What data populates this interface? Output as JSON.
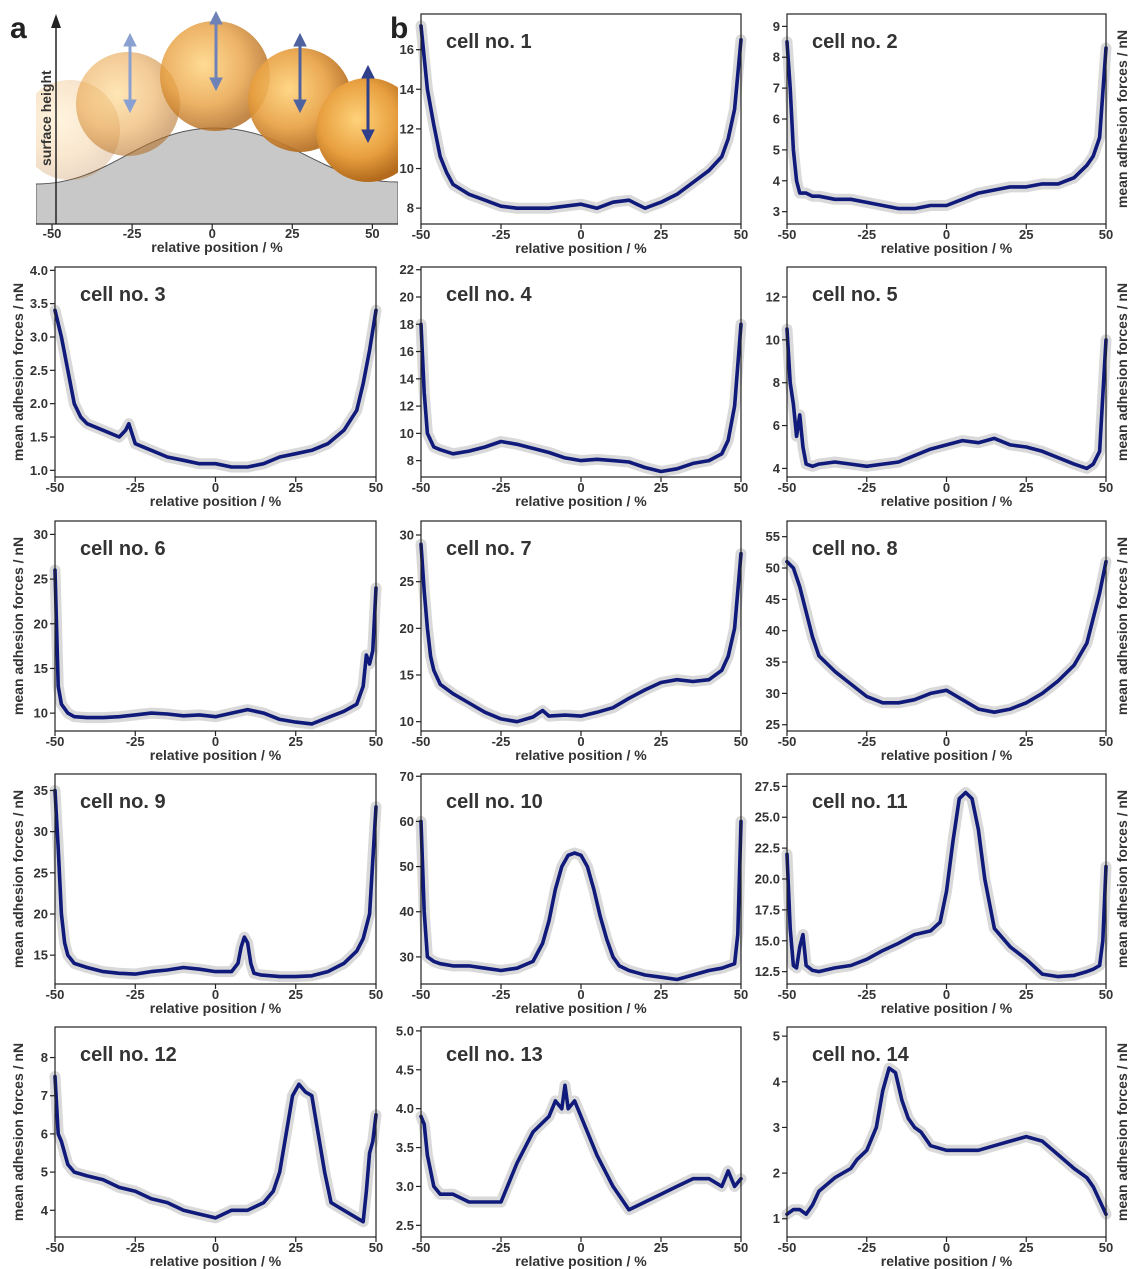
{
  "figure": {
    "panel_a_letter": "a",
    "panel_b_letter": "b",
    "panel_a": {
      "ylabel": "surface height",
      "xlabel": "relative position / %",
      "x_ticks": [
        "-50",
        "-25",
        "0",
        "25",
        "50"
      ],
      "xlim": [
        -55,
        58
      ]
    },
    "colors": {
      "line": "#0f1a7a",
      "band": "#d9d9d9",
      "surface": "#c8c8c8",
      "cell_core": "#e8a040",
      "cell_light": "#ffd27a",
      "arrow": "#5a6ea6"
    }
  },
  "chart_data": [
    {
      "type": "line",
      "title": "cell no. 1",
      "xlabel": "relative position / %",
      "ylabel": "",
      "xlim": [
        -50,
        50
      ],
      "ylim": [
        7.2,
        17.8
      ],
      "yticks": [
        "8",
        "10",
        "12",
        "14",
        "16"
      ],
      "x": [
        -50,
        -48,
        -46,
        -44,
        -42,
        -40,
        -35,
        -30,
        -25,
        -20,
        -15,
        -10,
        -5,
        0,
        5,
        10,
        15,
        20,
        25,
        30,
        35,
        40,
        44,
        46,
        48,
        50
      ],
      "values": [
        17.2,
        14.0,
        12.2,
        10.6,
        9.8,
        9.2,
        8.7,
        8.4,
        8.1,
        8.0,
        8.0,
        8.0,
        8.1,
        8.2,
        8.0,
        8.3,
        8.4,
        8.0,
        8.3,
        8.7,
        9.3,
        9.9,
        10.6,
        11.5,
        13.0,
        16.5
      ]
    },
    {
      "type": "line",
      "title": "cell no. 2",
      "xlabel": "relative position / %",
      "ylabel": "mean adhesion forces / nN",
      "xlim": [
        -50,
        50
      ],
      "ylim": [
        2.6,
        9.4
      ],
      "yticks": [
        "3",
        "4",
        "5",
        "6",
        "7",
        "8",
        "9"
      ],
      "x": [
        -50,
        -49,
        -48,
        -47,
        -46,
        -44,
        -42,
        -40,
        -35,
        -30,
        -25,
        -20,
        -15,
        -10,
        -5,
        0,
        5,
        10,
        15,
        20,
        25,
        30,
        35,
        40,
        44,
        46,
        48,
        50
      ],
      "values": [
        8.5,
        7.0,
        5.0,
        4.0,
        3.6,
        3.6,
        3.5,
        3.5,
        3.4,
        3.4,
        3.3,
        3.2,
        3.1,
        3.1,
        3.2,
        3.2,
        3.4,
        3.6,
        3.7,
        3.8,
        3.8,
        3.9,
        3.9,
        4.1,
        4.5,
        4.8,
        5.4,
        8.3
      ]
    },
    {
      "type": "line",
      "title": "cell no. 3",
      "xlabel": "relative position / %",
      "ylabel": "mean adhesion forces / nN",
      "xlim": [
        -50,
        50
      ],
      "ylim": [
        0.9,
        4.05
      ],
      "yticks": [
        "1.0",
        "1.5",
        "2.0",
        "2.5",
        "3.0",
        "3.5",
        "4.0"
      ],
      "x": [
        -50,
        -48,
        -46,
        -44,
        -42,
        -40,
        -35,
        -30,
        -28,
        -27,
        -25,
        -20,
        -15,
        -10,
        -5,
        0,
        5,
        10,
        15,
        20,
        25,
        30,
        35,
        40,
        44,
        46,
        48,
        50
      ],
      "values": [
        3.4,
        3.0,
        2.5,
        2.0,
        1.8,
        1.7,
        1.6,
        1.5,
        1.6,
        1.7,
        1.4,
        1.3,
        1.2,
        1.15,
        1.1,
        1.1,
        1.05,
        1.05,
        1.1,
        1.2,
        1.25,
        1.3,
        1.4,
        1.6,
        1.9,
        2.3,
        2.8,
        3.4
      ]
    },
    {
      "type": "line",
      "title": "cell no. 4",
      "xlabel": "relative position / %",
      "ylabel": "",
      "xlim": [
        -50,
        50
      ],
      "ylim": [
        6.8,
        22.2
      ],
      "yticks": [
        "8",
        "10",
        "12",
        "14",
        "16",
        "18",
        "20",
        "22"
      ],
      "x": [
        -50,
        -49,
        -48,
        -47,
        -46,
        -44,
        -40,
        -35,
        -30,
        -25,
        -20,
        -15,
        -10,
        -5,
        0,
        5,
        10,
        15,
        20,
        25,
        30,
        35,
        40,
        44,
        46,
        48,
        50
      ],
      "values": [
        18.0,
        13.0,
        10.0,
        9.5,
        9.0,
        8.8,
        8.5,
        8.7,
        9.0,
        9.4,
        9.2,
        8.9,
        8.6,
        8.2,
        8.0,
        8.1,
        8.0,
        7.9,
        7.5,
        7.2,
        7.4,
        7.8,
        8.0,
        8.5,
        9.5,
        12.0,
        18.0
      ]
    },
    {
      "type": "line",
      "title": "cell no. 5",
      "xlabel": "relative position / %",
      "ylabel": "mean adhesion forces / nN",
      "xlim": [
        -50,
        50
      ],
      "ylim": [
        3.6,
        13.4
      ],
      "yticks": [
        "4",
        "6",
        "8",
        "10",
        "12"
      ],
      "x": [
        -50,
        -49,
        -48,
        -47,
        -46,
        -45,
        -44,
        -42,
        -40,
        -35,
        -30,
        -25,
        -20,
        -15,
        -10,
        -5,
        0,
        5,
        10,
        15,
        20,
        25,
        30,
        35,
        40,
        44,
        46,
        48,
        50
      ],
      "values": [
        10.5,
        8.0,
        7.0,
        5.5,
        6.5,
        5.0,
        4.2,
        4.1,
        4.2,
        4.3,
        4.2,
        4.1,
        4.2,
        4.3,
        4.6,
        4.9,
        5.1,
        5.3,
        5.2,
        5.4,
        5.1,
        5.0,
        4.8,
        4.5,
        4.2,
        4.0,
        4.2,
        4.8,
        10.0
      ]
    },
    {
      "type": "line",
      "title": "cell no. 6",
      "xlabel": "relative position / %",
      "ylabel": "mean adhesion forces / nN",
      "xlim": [
        -50,
        50
      ],
      "ylim": [
        8,
        31.5
      ],
      "yticks": [
        "10",
        "15",
        "20",
        "25",
        "30"
      ],
      "x": [
        -50,
        -49,
        -48,
        -46,
        -44,
        -40,
        -35,
        -30,
        -25,
        -20,
        -15,
        -10,
        -5,
        0,
        5,
        10,
        15,
        20,
        25,
        30,
        35,
        40,
        44,
        46,
        47,
        48,
        49,
        50
      ],
      "values": [
        26.0,
        13.0,
        11.0,
        10.0,
        9.6,
        9.5,
        9.5,
        9.6,
        9.8,
        10.0,
        9.9,
        9.7,
        9.8,
        9.6,
        10.0,
        10.4,
        10.0,
        9.3,
        9.0,
        8.8,
        9.5,
        10.2,
        11.0,
        13.0,
        16.5,
        15.5,
        17.0,
        24.0
      ]
    },
    {
      "type": "line",
      "title": "cell no. 7",
      "xlabel": "relative position / %",
      "ylabel": "",
      "xlim": [
        -50,
        50
      ],
      "ylim": [
        9,
        31.5
      ],
      "yticks": [
        "10",
        "15",
        "20",
        "25",
        "30"
      ],
      "x": [
        -50,
        -49,
        -48,
        -47,
        -46,
        -44,
        -40,
        -35,
        -30,
        -25,
        -20,
        -15,
        -12,
        -10,
        -5,
        0,
        5,
        10,
        15,
        20,
        25,
        30,
        35,
        40,
        44,
        46,
        48,
        50
      ],
      "values": [
        29.0,
        24.0,
        20.0,
        17.0,
        15.5,
        14.0,
        13.0,
        12.0,
        11.0,
        10.3,
        10.0,
        10.5,
        11.2,
        10.6,
        10.7,
        10.6,
        11.0,
        11.5,
        12.5,
        13.4,
        14.2,
        14.5,
        14.3,
        14.5,
        15.5,
        17.0,
        20.0,
        28.0
      ]
    },
    {
      "type": "line",
      "title": "cell no. 8",
      "xlabel": "relative position / %",
      "ylabel": "mean adhesion forces / nN",
      "xlim": [
        -50,
        50
      ],
      "ylim": [
        24,
        57.5
      ],
      "yticks": [
        "25",
        "30",
        "35",
        "40",
        "45",
        "50",
        "55"
      ],
      "x": [
        -50,
        -48,
        -46,
        -44,
        -42,
        -40,
        -35,
        -30,
        -25,
        -20,
        -15,
        -10,
        -5,
        0,
        5,
        10,
        15,
        20,
        25,
        30,
        35,
        40,
        44,
        46,
        48,
        50
      ],
      "values": [
        51.0,
        50.0,
        47.0,
        43.0,
        39.0,
        36.0,
        33.5,
        31.5,
        29.5,
        28.5,
        28.5,
        29.0,
        30.0,
        30.5,
        29.0,
        27.5,
        27.0,
        27.5,
        28.5,
        30.0,
        32.0,
        34.5,
        38.0,
        42.0,
        46.0,
        51.0
      ]
    },
    {
      "type": "line",
      "title": "cell no. 9",
      "xlabel": "relative position / %",
      "ylabel": "mean adhesion forces / nN",
      "xlim": [
        -50,
        50
      ],
      "ylim": [
        11.5,
        37
      ],
      "yticks": [
        "15",
        "20",
        "25",
        "30",
        "35"
      ],
      "x": [
        -50,
        -49,
        -48,
        -47,
        -46,
        -44,
        -40,
        -35,
        -30,
        -25,
        -20,
        -15,
        -10,
        -5,
        0,
        5,
        7,
        8,
        9,
        10,
        11,
        12,
        14,
        20,
        25,
        30,
        35,
        40,
        44,
        46,
        48,
        50
      ],
      "values": [
        35.0,
        28.0,
        20.0,
        16.5,
        15.0,
        14.0,
        13.5,
        13.0,
        12.8,
        12.7,
        13.0,
        13.2,
        13.5,
        13.3,
        13.0,
        13.0,
        14.0,
        16.0,
        17.2,
        16.5,
        14.0,
        12.8,
        12.6,
        12.4,
        12.4,
        12.5,
        13.0,
        14.0,
        15.5,
        17.0,
        20.0,
        33.0
      ]
    },
    {
      "type": "line",
      "title": "cell no. 10",
      "xlabel": "relative position / %",
      "ylabel": "",
      "xlim": [
        -50,
        50
      ],
      "ylim": [
        24,
        70.5
      ],
      "yticks": [
        "30",
        "40",
        "50",
        "60",
        "70"
      ],
      "x": [
        -50,
        -49,
        -48,
        -46,
        -44,
        -40,
        -35,
        -30,
        -25,
        -20,
        -15,
        -12,
        -10,
        -8,
        -6,
        -4,
        -2,
        0,
        2,
        4,
        6,
        8,
        10,
        12,
        15,
        20,
        25,
        30,
        35,
        40,
        44,
        46,
        48,
        49,
        50
      ],
      "values": [
        60.0,
        40.0,
        30.0,
        29.0,
        28.5,
        28.0,
        28.0,
        27.5,
        27.0,
        27.5,
        29.0,
        33.0,
        38.0,
        45.0,
        50.0,
        52.5,
        53.0,
        52.5,
        50.0,
        45.0,
        39.0,
        34.0,
        30.0,
        28.0,
        27.0,
        26.0,
        25.5,
        25.0,
        26.0,
        27.0,
        27.5,
        28.0,
        28.5,
        35.0,
        60.0
      ]
    },
    {
      "type": "line",
      "title": "cell no. 11",
      "xlabel": "relative position / %",
      "ylabel": "mean adhesion forces / nN",
      "xlim": [
        -50,
        50
      ],
      "ylim": [
        11.5,
        28.5
      ],
      "yticks": [
        "12.5",
        "15.0",
        "17.5",
        "20.0",
        "22.5",
        "25.0",
        "27.5"
      ],
      "x": [
        -50,
        -49,
        -48,
        -47,
        -46,
        -45,
        -44,
        -42,
        -40,
        -35,
        -30,
        -25,
        -20,
        -15,
        -10,
        -5,
        -2,
        0,
        2,
        4,
        6,
        8,
        10,
        12,
        15,
        20,
        25,
        30,
        35,
        40,
        44,
        46,
        48,
        49,
        50
      ],
      "values": [
        22.0,
        16.0,
        13.0,
        12.8,
        14.5,
        15.5,
        13.0,
        12.6,
        12.5,
        12.8,
        13.0,
        13.5,
        14.2,
        14.8,
        15.5,
        15.8,
        16.5,
        19.0,
        23.0,
        26.5,
        27.0,
        26.5,
        24.0,
        20.0,
        16.0,
        14.5,
        13.5,
        12.3,
        12.1,
        12.2,
        12.5,
        12.7,
        13.0,
        15.0,
        21.0
      ]
    },
    {
      "type": "line",
      "title": "cell no. 12",
      "xlabel": "relative position / %",
      "ylabel": "mean adhesion forces / nN",
      "xlim": [
        -50,
        50
      ],
      "ylim": [
        3.3,
        8.8
      ],
      "yticks": [
        "4",
        "5",
        "6",
        "7",
        "8"
      ],
      "x": [
        -50,
        -49,
        -48,
        -46,
        -44,
        -40,
        -35,
        -30,
        -25,
        -20,
        -15,
        -10,
        -5,
        0,
        5,
        10,
        15,
        18,
        20,
        22,
        24,
        26,
        28,
        30,
        32,
        34,
        36,
        38,
        40,
        44,
        46,
        47,
        48,
        49,
        50
      ],
      "values": [
        7.5,
        6.0,
        5.8,
        5.2,
        5.0,
        4.9,
        4.8,
        4.6,
        4.5,
        4.3,
        4.2,
        4.0,
        3.9,
        3.8,
        4.0,
        4.0,
        4.2,
        4.5,
        5.0,
        6.0,
        7.0,
        7.3,
        7.1,
        7.0,
        6.0,
        5.0,
        4.2,
        4.1,
        4.0,
        3.8,
        3.7,
        4.5,
        5.5,
        5.8,
        6.5
      ]
    },
    {
      "type": "line",
      "title": "cell no. 13",
      "xlabel": "relative position / %",
      "ylabel": "",
      "xlim": [
        -50,
        50
      ],
      "ylim": [
        2.35,
        5.05
      ],
      "yticks": [
        "2.5",
        "3.0",
        "3.5",
        "4.0",
        "4.5",
        "5.0"
      ],
      "x": [
        -50,
        -49,
        -48,
        -46,
        -44,
        -40,
        -35,
        -30,
        -25,
        -20,
        -15,
        -10,
        -8,
        -6,
        -5,
        -4,
        -2,
        0,
        5,
        10,
        15,
        20,
        25,
        30,
        35,
        40,
        44,
        46,
        48,
        50
      ],
      "values": [
        3.9,
        3.8,
        3.4,
        3.0,
        2.9,
        2.9,
        2.8,
        2.8,
        2.8,
        3.3,
        3.7,
        3.9,
        4.1,
        4.0,
        4.3,
        4.0,
        4.1,
        3.9,
        3.4,
        3.0,
        2.7,
        2.8,
        2.9,
        3.0,
        3.1,
        3.1,
        3.0,
        3.2,
        3.0,
        3.1
      ]
    },
    {
      "type": "line",
      "title": "cell no. 14",
      "xlabel": "relative position / %",
      "ylabel": "mean adhesion forces / nN",
      "xlim": [
        -50,
        50
      ],
      "ylim": [
        0.6,
        5.2
      ],
      "yticks": [
        "1",
        "2",
        "3",
        "4",
        "5"
      ],
      "x": [
        -50,
        -48,
        -46,
        -44,
        -42,
        -40,
        -35,
        -30,
        -28,
        -25,
        -22,
        -20,
        -18,
        -16,
        -14,
        -12,
        -10,
        -8,
        -5,
        0,
        5,
        10,
        15,
        20,
        25,
        30,
        35,
        40,
        44,
        46,
        48,
        50
      ],
      "values": [
        1.1,
        1.2,
        1.2,
        1.1,
        1.3,
        1.6,
        1.9,
        2.1,
        2.3,
        2.5,
        3.0,
        3.8,
        4.3,
        4.2,
        3.6,
        3.2,
        3.0,
        2.9,
        2.6,
        2.5,
        2.5,
        2.5,
        2.6,
        2.7,
        2.8,
        2.7,
        2.4,
        2.1,
        1.9,
        1.7,
        1.4,
        1.1
      ]
    }
  ]
}
